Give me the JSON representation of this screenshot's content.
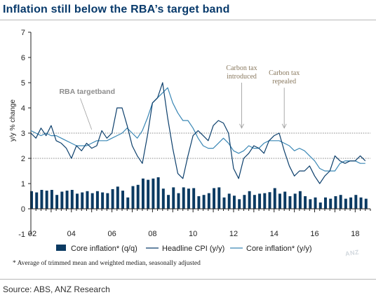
{
  "title": "Inflation still below the RBA’s target band",
  "source": "Source: ABS, ANZ Research",
  "watermark": "ANZ",
  "chart_data": {
    "type": "bar",
    "ylabel": "y/y % change",
    "ylim": [
      -1,
      7
    ],
    "yticks": [
      "7",
      "6",
      "5",
      "4",
      "3",
      "2",
      "1",
      "0",
      "-1"
    ],
    "ytick_values": [
      7,
      6,
      5,
      4,
      3,
      2,
      1,
      0,
      -1
    ],
    "xlim": [
      2002.0,
      2018.75
    ],
    "xticks": [
      "02",
      "04",
      "06",
      "08",
      "10",
      "12",
      "14",
      "16",
      "18"
    ],
    "xtick_values": [
      2002,
      2004,
      2006,
      2008,
      2010,
      2012,
      2014,
      2016,
      2018
    ],
    "grid": false,
    "target_band": [
      2,
      3
    ],
    "colors": {
      "bars": "#0b3a62",
      "headline": "#0c3f6c",
      "core": "#3a87b5",
      "band": "#8c8c8c",
      "annotation": "#8a7a60",
      "axis": "#222222"
    },
    "annotations": [
      {
        "text": "RBA targetband",
        "x": 2003.4,
        "y": 4.55,
        "point_x": 2005.0,
        "point_y": 3.06
      },
      {
        "text_lines": [
          "Carbon tax",
          "introduced"
        ],
        "x": 2012.4,
        "y": 5.5,
        "point_x": 2012.4,
        "point_y": 3.2
      },
      {
        "text_lines": [
          "Carbon tax",
          "repealed"
        ],
        "x": 2014.5,
        "y": 5.3,
        "point_x": 2014.5,
        "point_y": 3.2
      }
    ],
    "series": [
      {
        "name": "Core inflation* (q/q)",
        "kind": "bar",
        "x": [
          2002.0,
          2002.25,
          2002.5,
          2002.75,
          2003.0,
          2003.25,
          2003.5,
          2003.75,
          2004.0,
          2004.25,
          2004.5,
          2004.75,
          2005.0,
          2005.25,
          2005.5,
          2005.75,
          2006.0,
          2006.25,
          2006.5,
          2006.75,
          2007.0,
          2007.25,
          2007.5,
          2007.75,
          2008.0,
          2008.25,
          2008.5,
          2008.75,
          2009.0,
          2009.25,
          2009.5,
          2009.75,
          2010.0,
          2010.25,
          2010.5,
          2010.75,
          2011.0,
          2011.25,
          2011.5,
          2011.75,
          2012.0,
          2012.25,
          2012.5,
          2012.75,
          2013.0,
          2013.25,
          2013.5,
          2013.75,
          2014.0,
          2014.25,
          2014.5,
          2014.75,
          2015.0,
          2015.25,
          2015.5,
          2015.75,
          2016.0,
          2016.25,
          2016.5,
          2016.75,
          2017.0,
          2017.25,
          2017.5,
          2017.75,
          2018.0,
          2018.25,
          2018.5
        ],
        "values": [
          0.7,
          0.65,
          0.75,
          0.72,
          0.75,
          0.55,
          0.68,
          0.72,
          0.75,
          0.6,
          0.65,
          0.7,
          0.62,
          0.7,
          0.65,
          0.62,
          0.78,
          0.88,
          0.72,
          0.45,
          0.9,
          0.95,
          1.2,
          1.15,
          1.2,
          1.25,
          0.8,
          0.55,
          0.85,
          0.62,
          0.85,
          0.8,
          0.82,
          0.5,
          0.55,
          0.62,
          0.82,
          0.85,
          0.45,
          0.6,
          0.52,
          0.38,
          0.55,
          0.7,
          0.55,
          0.6,
          0.62,
          0.66,
          0.82,
          0.6,
          0.68,
          0.5,
          0.6,
          0.7,
          0.5,
          0.38,
          0.45,
          0.25,
          0.45,
          0.4,
          0.5,
          0.55,
          0.4,
          0.45,
          0.55,
          0.45,
          0.4
        ]
      },
      {
        "name": "Headline CPI (y/y)",
        "kind": "line",
        "x": [
          2002.0,
          2002.25,
          2002.5,
          2002.75,
          2003.0,
          2003.25,
          2003.5,
          2003.75,
          2004.0,
          2004.25,
          2004.5,
          2004.75,
          2005.0,
          2005.25,
          2005.5,
          2005.75,
          2006.0,
          2006.25,
          2006.5,
          2006.75,
          2007.0,
          2007.25,
          2007.5,
          2007.75,
          2008.0,
          2008.25,
          2008.5,
          2008.75,
          2009.0,
          2009.25,
          2009.5,
          2009.75,
          2010.0,
          2010.25,
          2010.5,
          2010.75,
          2011.0,
          2011.25,
          2011.5,
          2011.75,
          2012.0,
          2012.25,
          2012.5,
          2012.75,
          2013.0,
          2013.25,
          2013.5,
          2013.75,
          2014.0,
          2014.25,
          2014.5,
          2014.75,
          2015.0,
          2015.25,
          2015.5,
          2015.75,
          2016.0,
          2016.25,
          2016.5,
          2016.75,
          2017.0,
          2017.25,
          2017.5,
          2017.75,
          2018.0,
          2018.25,
          2018.5
        ],
        "values": [
          3.0,
          2.8,
          3.2,
          2.9,
          3.3,
          2.7,
          2.6,
          2.4,
          2.0,
          2.5,
          2.3,
          2.6,
          2.4,
          2.5,
          3.1,
          2.8,
          3.0,
          4.0,
          4.0,
          3.3,
          2.5,
          2.1,
          1.8,
          2.9,
          4.2,
          4.4,
          5.0,
          3.6,
          2.4,
          1.4,
          1.2,
          2.1,
          2.9,
          3.1,
          2.9,
          2.7,
          3.3,
          3.5,
          3.4,
          3.0,
          1.6,
          1.2,
          2.0,
          2.2,
          2.5,
          2.4,
          2.2,
          2.7,
          2.9,
          3.0,
          2.3,
          1.7,
          1.3,
          1.5,
          1.5,
          1.7,
          1.3,
          1.0,
          1.3,
          1.5,
          2.1,
          1.9,
          1.8,
          1.9,
          1.9,
          2.1,
          1.9
        ]
      },
      {
        "name": "Core inflation* (y/y)",
        "kind": "line",
        "x": [
          2002.0,
          2002.25,
          2002.5,
          2002.75,
          2003.0,
          2003.25,
          2003.5,
          2003.75,
          2004.0,
          2004.25,
          2004.5,
          2004.75,
          2005.0,
          2005.25,
          2005.5,
          2005.75,
          2006.0,
          2006.25,
          2006.5,
          2006.75,
          2007.0,
          2007.25,
          2007.5,
          2007.75,
          2008.0,
          2008.25,
          2008.5,
          2008.75,
          2009.0,
          2009.25,
          2009.5,
          2009.75,
          2010.0,
          2010.25,
          2010.5,
          2010.75,
          2011.0,
          2011.25,
          2011.5,
          2011.75,
          2012.0,
          2012.25,
          2012.5,
          2012.75,
          2013.0,
          2013.25,
          2013.5,
          2013.75,
          2014.0,
          2014.25,
          2014.5,
          2014.75,
          2015.0,
          2015.25,
          2015.5,
          2015.75,
          2016.0,
          2016.25,
          2016.5,
          2016.75,
          2017.0,
          2017.25,
          2017.5,
          2017.75,
          2018.0,
          2018.25,
          2018.5
        ],
        "values": [
          3.1,
          3.0,
          2.9,
          3.0,
          2.9,
          2.9,
          2.8,
          2.7,
          2.6,
          2.5,
          2.5,
          2.5,
          2.6,
          2.7,
          2.7,
          2.7,
          2.8,
          2.9,
          3.0,
          3.2,
          3.0,
          2.8,
          3.1,
          3.6,
          4.2,
          4.4,
          4.6,
          4.8,
          4.2,
          3.8,
          3.5,
          3.5,
          3.2,
          2.8,
          2.5,
          2.4,
          2.4,
          2.6,
          2.8,
          2.6,
          2.3,
          2.2,
          2.3,
          2.5,
          2.4,
          2.4,
          2.6,
          2.7,
          2.7,
          2.7,
          2.6,
          2.5,
          2.3,
          2.4,
          2.3,
          2.1,
          1.9,
          1.6,
          1.5,
          1.5,
          1.5,
          1.8,
          1.9,
          1.9,
          1.9,
          1.8,
          1.8
        ]
      }
    ],
    "legend": {
      "placement": "bottom",
      "items": [
        "Core inflation* (q/q)",
        "Headline CPI (y/y)",
        "Core inflation* (y/y)"
      ]
    },
    "footnote": "* Average of trimmed mean and weighted median, seasonally adjusted"
  }
}
